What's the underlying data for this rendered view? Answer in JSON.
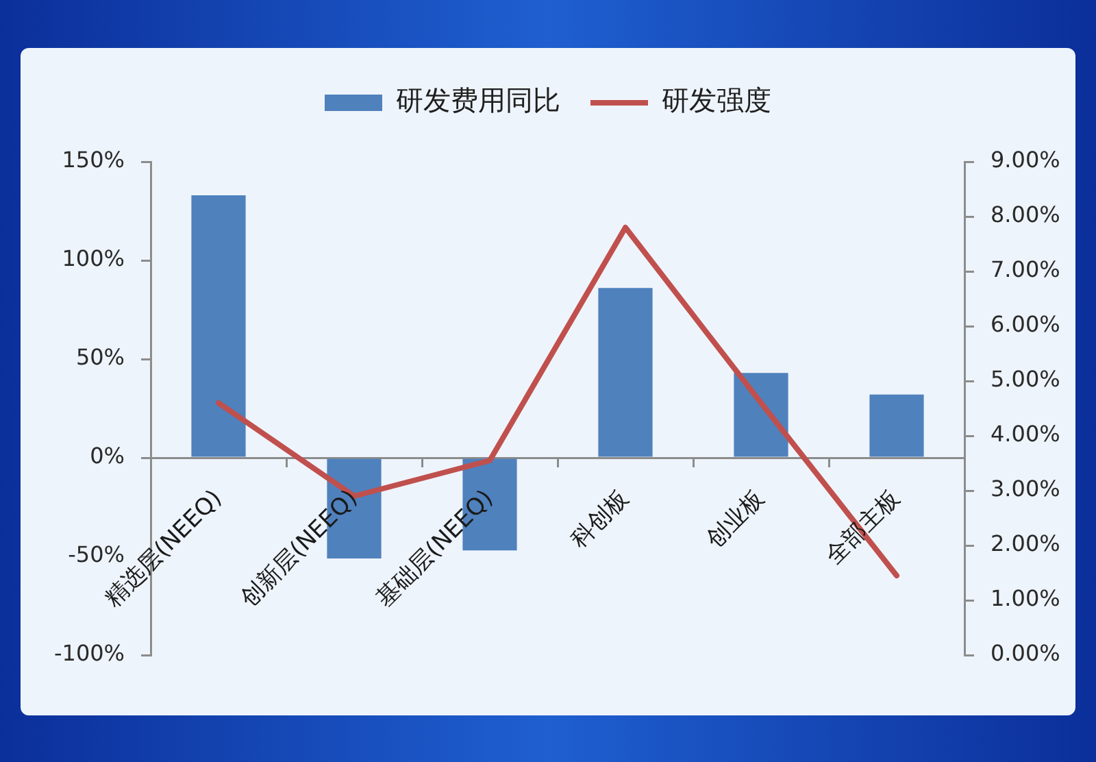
{
  "chart_data": {
    "type": "bar",
    "categories": [
      "精选层(NEEQ)",
      "创新层(NEEQ)",
      "基础层(NEEQ)",
      "科创板",
      "创业板",
      "全部主板"
    ],
    "series": [
      {
        "name": "研发费用同比",
        "color": "#4f81bd",
        "values": [
          133,
          -51,
          -47,
          86,
          43,
          32
        ]
      },
      {
        "name": "研发强度",
        "type": "line",
        "axis": "y2",
        "color": "#c0504d",
        "values": [
          4.6,
          2.9,
          3.55,
          7.8,
          4.6,
          1.45
        ]
      }
    ],
    "ylim": [
      -100,
      150
    ],
    "yticks": [
      {
        "value": -100,
        "label": "-100%"
      },
      {
        "value": -50,
        "label": "-50%"
      },
      {
        "value": 0,
        "label": "0%"
      },
      {
        "value": 50,
        "label": "50%"
      },
      {
        "value": 100,
        "label": "100%"
      },
      {
        "value": 150,
        "label": "150%"
      }
    ],
    "y2lim": [
      0,
      9
    ],
    "y2ticks": [
      {
        "value": 0,
        "label": "0.00%"
      },
      {
        "value": 1,
        "label": "1.00%"
      },
      {
        "value": 2,
        "label": "2.00%"
      },
      {
        "value": 3,
        "label": "3.00%"
      },
      {
        "value": 4,
        "label": "4.00%"
      },
      {
        "value": 5,
        "label": "5.00%"
      },
      {
        "value": 6,
        "label": "6.00%"
      },
      {
        "value": 7,
        "label": "7.00%"
      },
      {
        "value": 8,
        "label": "8.00%"
      },
      {
        "value": 9,
        "label": "9.00%"
      }
    ],
    "grid": false,
    "legend": "top"
  }
}
